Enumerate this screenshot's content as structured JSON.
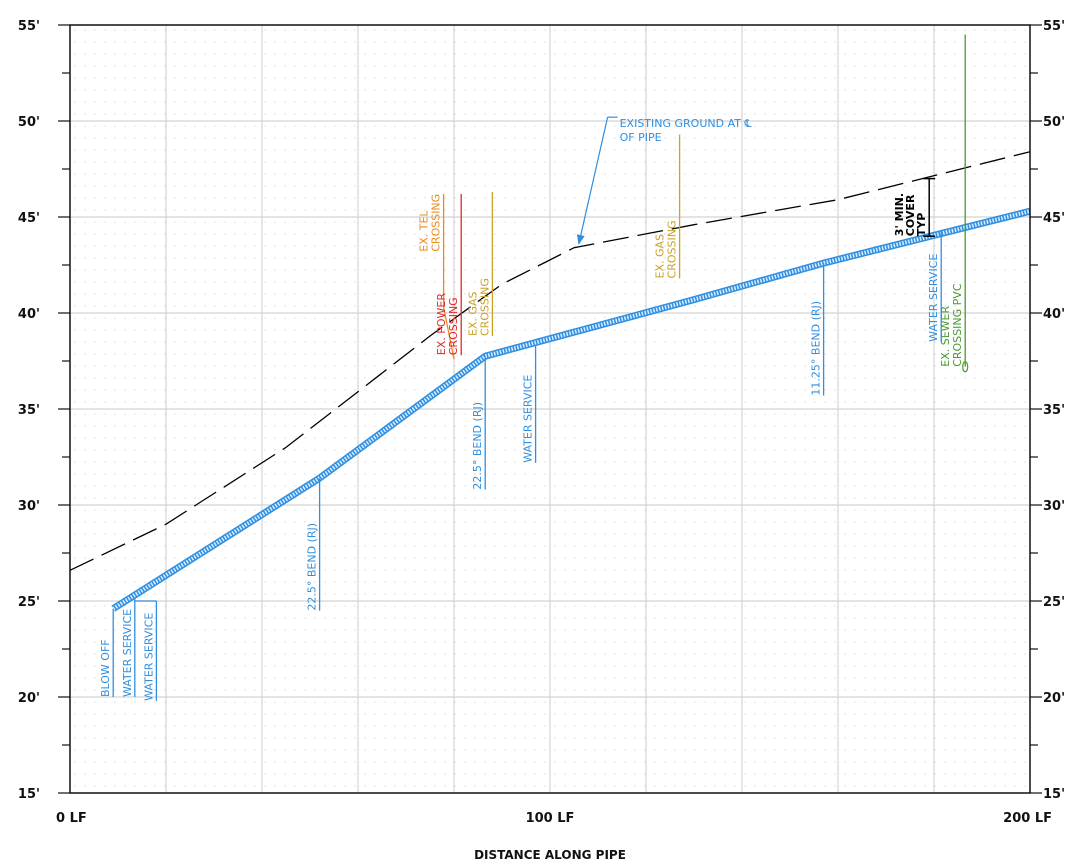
{
  "chart_data": {
    "type": "line",
    "title": "",
    "xlabel": "DISTANCE ALONG PIPE",
    "ylabel": "",
    "xlim": [
      0,
      200
    ],
    "ylim": [
      15,
      55
    ],
    "y_major_step": 5,
    "y_minor_step": 2.5,
    "x_grid_step": 20,
    "grid": true,
    "x_ticks": [
      {
        "value": 0,
        "label": "0 LF"
      },
      {
        "value": 100,
        "label": "100 LF"
      },
      {
        "value": 200,
        "label": "200 LF"
      }
    ],
    "y_ticks": [
      {
        "value": 15,
        "label": "15'"
      },
      {
        "value": 20,
        "label": "20'"
      },
      {
        "value": 25,
        "label": "25'"
      },
      {
        "value": 30,
        "label": "30'"
      },
      {
        "value": 35,
        "label": "35'"
      },
      {
        "value": 40,
        "label": "40'"
      },
      {
        "value": 45,
        "label": "45'"
      },
      {
        "value": 50,
        "label": "50'"
      },
      {
        "value": 55,
        "label": "55'"
      }
    ],
    "series": [
      {
        "name": "EXISTING GROUND AT ℄ OF PIPE",
        "style": "dashed",
        "color": "#000000",
        "x": [
          0,
          20,
          45,
          75,
          90,
          105,
          130,
          160,
          200
        ],
        "y": [
          26.6,
          29.0,
          33.0,
          38.8,
          41.5,
          43.4,
          44.6,
          45.9,
          48.4
        ]
      },
      {
        "name": "PIPE",
        "style": "pipe",
        "color": "#2f8fe0",
        "x": [
          9,
          52,
          86.5,
          130,
          157,
          200
        ],
        "y": [
          24.6,
          31.4,
          37.75,
          40.7,
          42.6,
          45.3
        ]
      }
    ],
    "annotations": [
      {
        "lines": [
          "BLOW OFF"
        ],
        "color": "#2f8fe0",
        "x": 9,
        "y_top": 24.6,
        "y_bottom": 20.0,
        "leader": "left"
      },
      {
        "lines": [
          "WATER SERVICE"
        ],
        "color": "#2f8fe0",
        "x": 13.5,
        "y_top": 25.1,
        "y_bottom": 20.0,
        "leader": "left"
      },
      {
        "lines": [
          "WATER SERVICE"
        ],
        "color": "#2f8fe0",
        "x": 18,
        "y_top": 25.0,
        "y_bottom": 19.8,
        "leader": "left",
        "tick_from_x": 13.5
      },
      {
        "lines": [
          "22.5° BEND (RJ)"
        ],
        "color": "#2f8fe0",
        "x": 52,
        "y_top": 31.4,
        "y_bottom": 24.5,
        "leader": "left"
      },
      {
        "lines": [
          "EX. TEL",
          "CROSSING"
        ],
        "color": "#f08a1c",
        "x": 79.5,
        "y_top": 46.2,
        "y_bottom": 37.6,
        "leader": "bent",
        "bend_to_x": 80,
        "bend_y": 40.3
      },
      {
        "lines": [
          "EX. POWER",
          "CROSSING"
        ],
        "color": "#e02828",
        "x": 81.5,
        "y_top": 46.2,
        "y_bottom": 37.8,
        "leader": "left"
      },
      {
        "lines": [
          "EX. GAS",
          "CROSSING"
        ],
        "color": "#c9a227",
        "x": 88,
        "y_top": 46.3,
        "y_bottom": 38.8,
        "leader": "left"
      },
      {
        "lines": [
          "22.5° BEND (RJ)"
        ],
        "color": "#2f8fe0",
        "x": 86.5,
        "y_top": 37.75,
        "y_bottom": 30.8,
        "leader": "left"
      },
      {
        "lines": [
          "WATER SERVICE"
        ],
        "color": "#2f8fe0",
        "x": 97,
        "y_top": 38.3,
        "y_bottom": 32.2,
        "leader": "left"
      },
      {
        "lines": [
          "EX. GAS",
          "CROSSING"
        ],
        "color": "#c9a227",
        "x": 127,
        "y_top": 49.3,
        "y_bottom": 41.8,
        "leader": "left"
      },
      {
        "lines": [
          "11.25° BEND (RJ)"
        ],
        "color": "#2f8fe0",
        "x": 157,
        "y_top": 42.6,
        "y_bottom": 35.7,
        "leader": "left"
      },
      {
        "lines": [
          "WATER SERVICE"
        ],
        "color": "#2f8fe0",
        "x": 181.5,
        "y_top": 44.3,
        "y_bottom": 38.5,
        "leader": "left"
      },
      {
        "lines": [
          "EX. SEWER",
          "CROSSING PVC"
        ],
        "color": "#4a9a2e",
        "x": 186.5,
        "y_top": 54.5,
        "y_bottom": 37.2,
        "leader": "left",
        "end_circle": true
      }
    ],
    "callout": {
      "lines": [
        "EXISTING GROUND AT ℄",
        "OF PIPE"
      ],
      "color": "#2f8fe0",
      "text_x": 114.5,
      "text_y": 49.7,
      "arrow_from_x": 112,
      "arrow_from_y": 50.2,
      "arrow_to_x": 106,
      "arrow_to_y": 43.6
    },
    "cover_note": {
      "lines": [
        "3' MIN.",
        "COVER",
        "TYP"
      ],
      "color": "#000000",
      "x": 179,
      "y_top": 47.0,
      "y_bottom": 44.0
    }
  }
}
